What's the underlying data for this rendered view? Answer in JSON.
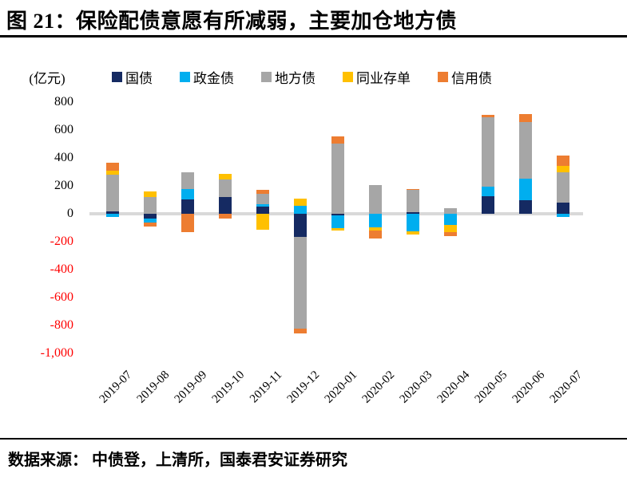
{
  "header": {
    "title": "图 21：保险配债意愿有所减弱，主要加仓地方债"
  },
  "footer": {
    "source": "数据来源：  中债登，上清所，国泰君安证券研究"
  },
  "chart_data": {
    "type": "bar",
    "stacked": true,
    "title": "图 21：保险配债意愿有所减弱，主要加仓地方债",
    "unit_label": "(亿元)",
    "legend_position": "top",
    "grid": false,
    "categories": [
      "2019-07",
      "2019-08",
      "2019-09",
      "2019-10",
      "2019-11",
      "2019-12",
      "2020-01",
      "2020-02",
      "2020-03",
      "2020-04",
      "2020-05",
      "2020-06",
      "2020-07"
    ],
    "series": [
      {
        "name": "国债",
        "color": "#152A62",
        "values": [
          15,
          -35,
          105,
          120,
          50,
          -165,
          -10,
          0,
          10,
          0,
          125,
          100,
          80
        ]
      },
      {
        "name": "政金债",
        "color": "#00AEEF",
        "values": [
          -25,
          -30,
          70,
          0,
          20,
          60,
          -95,
          -95,
          -125,
          -80,
          70,
          150,
          -20
        ]
      },
      {
        "name": "地方债",
        "color": "#A6A6A6",
        "values": [
          265,
          120,
          120,
          125,
          75,
          -660,
          505,
          205,
          160,
          40,
          495,
          410,
          215
        ]
      },
      {
        "name": "同业存单",
        "color": "#FFC000",
        "values": [
          30,
          40,
          0,
          40,
          -115,
          50,
          -15,
          -25,
          -25,
          -50,
          0,
          0,
          50
        ]
      },
      {
        "name": "信用债",
        "color": "#ED7D31",
        "values": [
          55,
          -25,
          -130,
          -35,
          25,
          -30,
          50,
          -55,
          5,
          -30,
          20,
          55,
          70
        ]
      }
    ],
    "y_axis": {
      "min": -1000,
      "max": 800,
      "step": 200,
      "tick_values": [
        800,
        600,
        400,
        200,
        0,
        -200,
        -400,
        -600,
        -800,
        -1000
      ],
      "tick_labels": [
        "800",
        "600",
        "400",
        "200",
        "0",
        "-200",
        "-400",
        "-600",
        "-800",
        "-1,000"
      ],
      "positive_label_color": "#000000",
      "negative_label_color": "#FF0000"
    },
    "zero_line_color": "#D9D9D9"
  }
}
